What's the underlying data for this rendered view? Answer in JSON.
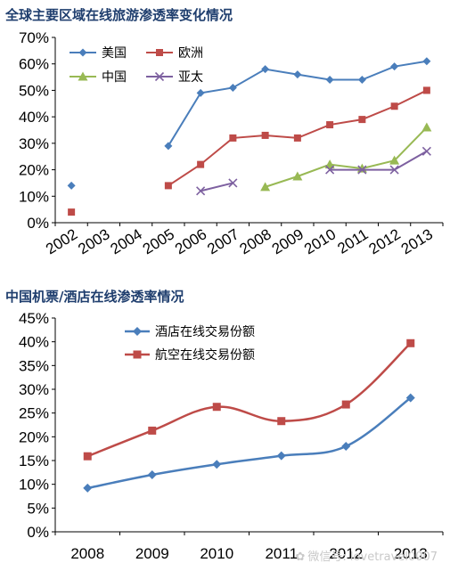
{
  "chart_data": [
    {
      "type": "line",
      "title": "全球主要区域在线旅游渗透率变化情况",
      "categories": [
        "2002",
        "2003",
        "2004",
        "2005",
        "2006",
        "2007",
        "2008",
        "2009",
        "2010",
        "2011",
        "2012",
        "2013"
      ],
      "y_tick_labels": [
        "0%",
        "10%",
        "20%",
        "30%",
        "40%",
        "50%",
        "60%",
        "70%"
      ],
      "ylim": [
        0,
        70
      ],
      "legend": "top-left",
      "grid": false,
      "series": [
        {
          "name": "美国",
          "color": "#4a7ebb",
          "marker": "diamond",
          "values": [
            14,
            null,
            null,
            29,
            49,
            51,
            58,
            56,
            54,
            54,
            59,
            61
          ]
        },
        {
          "name": "欧洲",
          "color": "#be4b48",
          "marker": "square",
          "values": [
            4,
            null,
            null,
            14,
            22,
            32,
            33,
            32,
            37,
            39,
            44,
            50
          ]
        },
        {
          "name": "中国",
          "color": "#98b954",
          "marker": "triangle",
          "values": [
            null,
            null,
            null,
            null,
            null,
            null,
            13.5,
            17.5,
            22,
            20.5,
            23.5,
            36
          ]
        },
        {
          "name": "亚太",
          "color": "#7d60a0",
          "marker": "x",
          "values": [
            null,
            null,
            null,
            null,
            12,
            15,
            null,
            null,
            20,
            20,
            20,
            27
          ]
        }
      ]
    },
    {
      "type": "line",
      "title": "中国机票/酒店在线渗透率情况",
      "categories": [
        "2008",
        "2009",
        "2010",
        "2011",
        "2012",
        "2013"
      ],
      "y_tick_labels": [
        "0%",
        "5%",
        "10%",
        "15%",
        "20%",
        "25%",
        "30%",
        "35%",
        "40%",
        "45%"
      ],
      "ylim": [
        0,
        45
      ],
      "legend": "top-left",
      "grid": false,
      "series": [
        {
          "name": "酒店在线交易份额",
          "color": "#4a7ebb",
          "marker": "diamond",
          "values": [
            9.2,
            12,
            14.2,
            16,
            18,
            28.2
          ]
        },
        {
          "name": "航空在线交易份额",
          "color": "#be4b48",
          "marker": "square",
          "values": [
            15.9,
            21.3,
            26.3,
            23.3,
            26.8,
            39.7
          ]
        }
      ]
    }
  ],
  "watermark": {
    "text": "微信号: lovetravel0007"
  }
}
